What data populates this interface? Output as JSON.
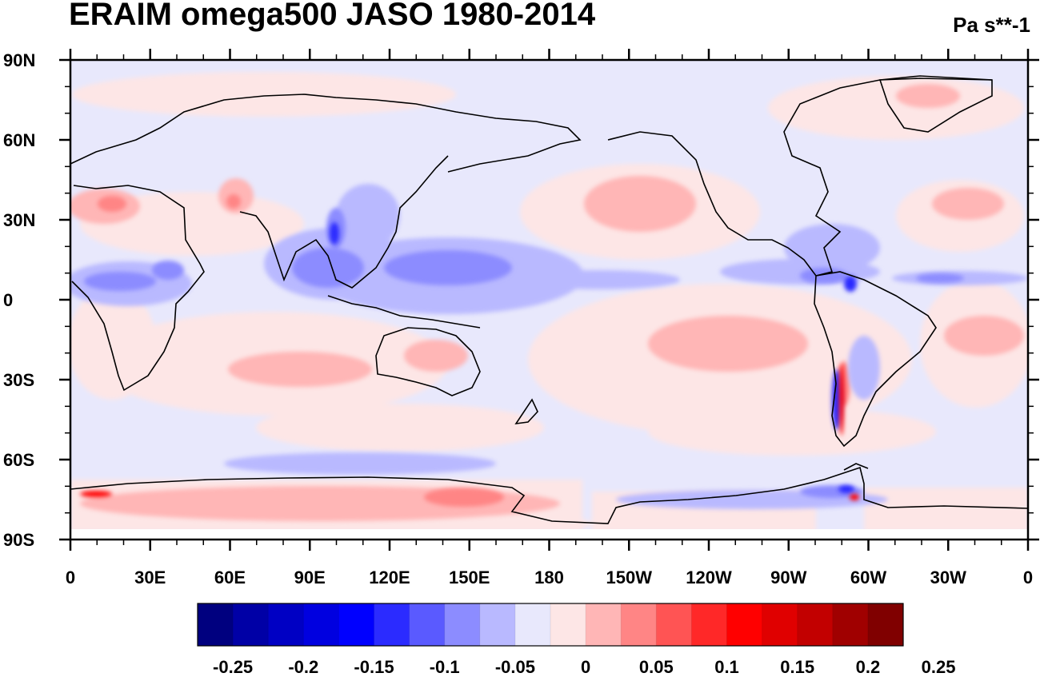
{
  "title": "ERAIM omega500 JASO 1980-2014",
  "units": "Pa s**-1",
  "map": {
    "lon_range": [
      0,
      360
    ],
    "lat_range": [
      -90,
      90
    ],
    "lat_labels": [
      "90N",
      "60N",
      "30N",
      "0",
      "30S",
      "60S",
      "90S"
    ],
    "lon_labels": [
      "0",
      "30E",
      "60E",
      "90E",
      "120E",
      "150E",
      "180",
      "150W",
      "120W",
      "90W",
      "60W",
      "30W",
      "0"
    ],
    "background_color": "#e8e8fc"
  },
  "colorbar": {
    "colors": [
      "#00007f",
      "#0000a6",
      "#0000c4",
      "#0000e0",
      "#0000ff",
      "#2b2bff",
      "#5a5aff",
      "#8c8cff",
      "#b9b9ff",
      "#e8e8fc",
      "#fde6e6",
      "#ffb6b6",
      "#ff8585",
      "#ff5454",
      "#ff2828",
      "#ff0000",
      "#e00000",
      "#c20000",
      "#a00000",
      "#800000"
    ],
    "labels": [
      "-0.25",
      "-0.2",
      "-0.15",
      "-0.1",
      "-0.05",
      "0",
      "0.05",
      "0.1",
      "0.15",
      "0.2",
      "0.25"
    ]
  }
}
